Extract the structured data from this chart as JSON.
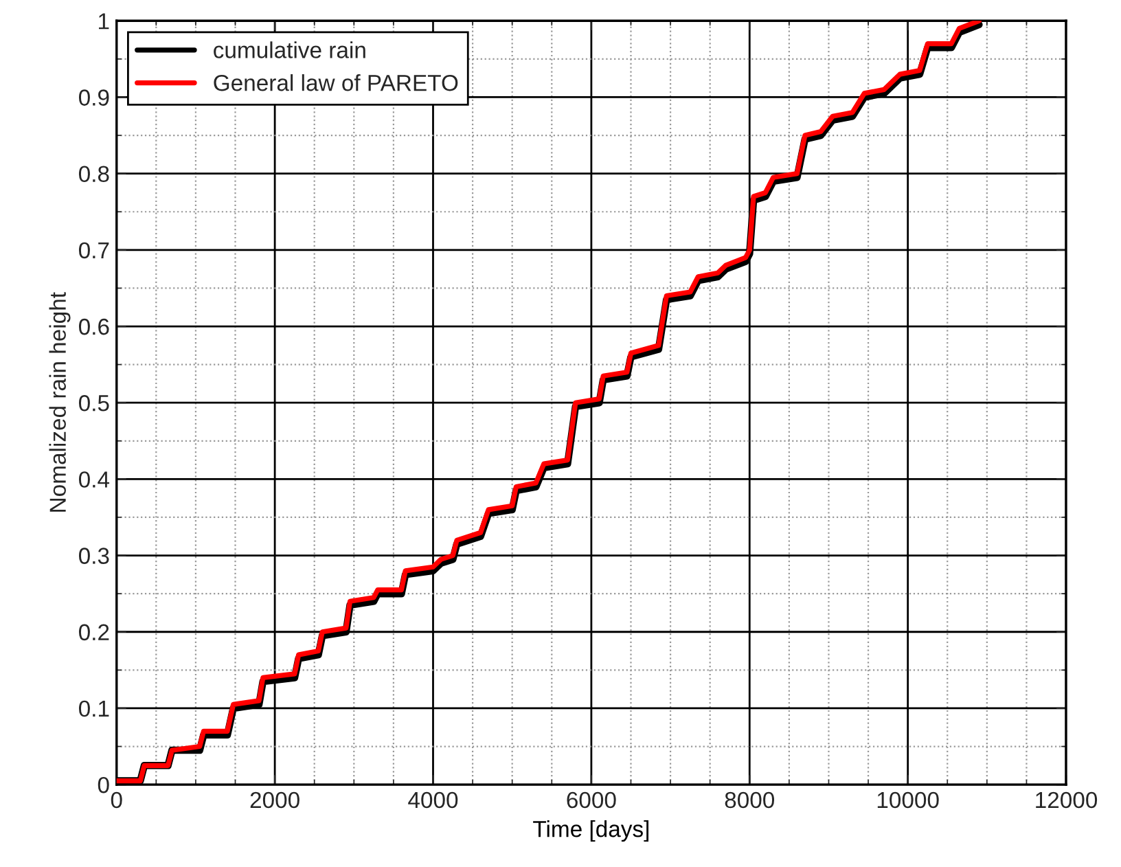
{
  "chart_data": {
    "type": "line",
    "xlabel": "Time [days]",
    "ylabel": "Nomalized rain height",
    "x": [
      0,
      300,
      350,
      650,
      700,
      1050,
      1100,
      1400,
      1475,
      1800,
      1850,
      2250,
      2300,
      2550,
      2600,
      2900,
      2950,
      3250,
      3300,
      3600,
      3650,
      4000,
      4100,
      4250,
      4300,
      4600,
      4700,
      5000,
      5050,
      5300,
      5400,
      5700,
      5800,
      6100,
      6150,
      6450,
      6500,
      6850,
      6950,
      7250,
      7350,
      7600,
      7700,
      7950,
      8000,
      8050,
      8200,
      8300,
      8600,
      8700,
      8900,
      9050,
      9300,
      9450,
      9700,
      9900,
      10150,
      10250,
      10550,
      10650,
      10900
    ],
    "series": [
      {
        "name": "cumulative rain",
        "color": "#000000",
        "values": [
          0.005,
          0.005,
          0.025,
          0.025,
          0.045,
          0.045,
          0.065,
          0.065,
          0.1,
          0.105,
          0.135,
          0.14,
          0.165,
          0.17,
          0.195,
          0.2,
          0.235,
          0.24,
          0.25,
          0.25,
          0.275,
          0.28,
          0.29,
          0.295,
          0.315,
          0.325,
          0.355,
          0.36,
          0.385,
          0.39,
          0.415,
          0.42,
          0.495,
          0.5,
          0.53,
          0.535,
          0.56,
          0.57,
          0.635,
          0.64,
          0.66,
          0.665,
          0.675,
          0.685,
          0.695,
          0.765,
          0.77,
          0.79,
          0.795,
          0.845,
          0.85,
          0.87,
          0.875,
          0.9,
          0.905,
          0.925,
          0.93,
          0.965,
          0.965,
          0.985,
          0.995
        ]
      },
      {
        "name": "General law of PARETO",
        "color": "#ff0000",
        "values": [
          0.005,
          0.005,
          0.025,
          0.025,
          0.045,
          0.05,
          0.07,
          0.07,
          0.105,
          0.11,
          0.14,
          0.145,
          0.17,
          0.175,
          0.2,
          0.205,
          0.24,
          0.245,
          0.255,
          0.255,
          0.28,
          0.285,
          0.295,
          0.3,
          0.32,
          0.33,
          0.36,
          0.365,
          0.39,
          0.395,
          0.42,
          0.425,
          0.5,
          0.505,
          0.535,
          0.54,
          0.565,
          0.575,
          0.64,
          0.645,
          0.665,
          0.67,
          0.68,
          0.69,
          0.7,
          0.77,
          0.775,
          0.795,
          0.8,
          0.85,
          0.855,
          0.875,
          0.88,
          0.905,
          0.91,
          0.93,
          0.935,
          0.97,
          0.97,
          0.99,
          1.0
        ]
      }
    ],
    "xlim": [
      0,
      12000
    ],
    "xticks": [
      0,
      2000,
      4000,
      6000,
      8000,
      10000,
      12000
    ],
    "ylim": [
      0,
      1
    ],
    "yticks": [
      0,
      0.1,
      0.2,
      0.3,
      0.4,
      0.5,
      0.6,
      0.7,
      0.8,
      0.9,
      1
    ],
    "grid": true,
    "legend": "top left",
    "line_style": "solid",
    "marker": "none"
  }
}
